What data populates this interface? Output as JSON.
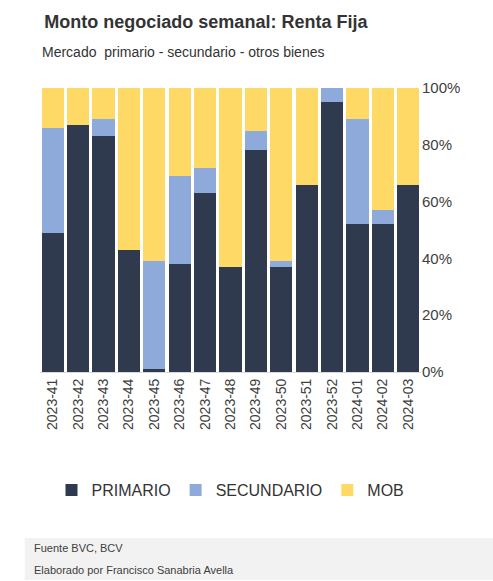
{
  "chart_data": {
    "type": "bar",
    "stacked": true,
    "title": "Monto negociado semanal: Renta Fija",
    "subtitle": "Mercado  primario - secundario - otros bienes",
    "annotations": [
      "Fuente BVC, BCV",
      "Elaborado por Francisco Sanabria Avella"
    ],
    "categories": [
      "2023-41",
      "2023-42",
      "2023-43",
      "2023-44",
      "2023-45",
      "2023-46",
      "2023-47",
      "2023-48",
      "2023-49",
      "2023-50",
      "2023-51",
      "2023-52",
      "2024-01",
      "2024-02",
      "2024-03"
    ],
    "series": [
      {
        "name": "PRIMARIO",
        "color": "#2f3a4e",
        "values": [
          49,
          87,
          83,
          43,
          1,
          38,
          63,
          37,
          78,
          37,
          66,
          95,
          52,
          52,
          66
        ]
      },
      {
        "name": "SECUNDARIO",
        "color": "#8eaadb",
        "values": [
          37,
          0,
          6,
          0,
          38,
          31,
          9,
          0,
          7,
          2,
          0,
          5,
          37,
          5,
          0
        ]
      },
      {
        "name": "MOB",
        "color": "#ffd966",
        "values": [
          14,
          13,
          11,
          57,
          61,
          31,
          28,
          63,
          15,
          61,
          34,
          0,
          11,
          43,
          34
        ]
      }
    ],
    "ylim": [
      0,
      100
    ],
    "yticks": [
      {
        "value": 0,
        "label": "0%"
      },
      {
        "value": 20,
        "label": "20%"
      },
      {
        "value": 40,
        "label": "40%"
      },
      {
        "value": 60,
        "label": "60%"
      },
      {
        "value": 80,
        "label": "80%"
      },
      {
        "value": 100,
        "label": "100%"
      }
    ],
    "grid": false,
    "legend": "bottom"
  }
}
